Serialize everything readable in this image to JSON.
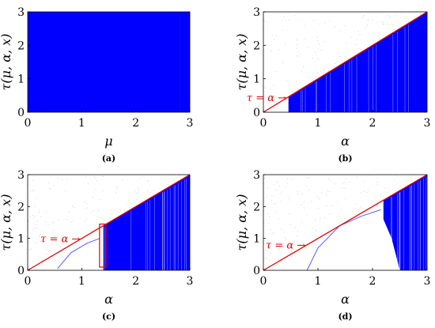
{
  "chart_data": [
    {
      "type": "scatter",
      "panel_label": "(a)",
      "xlabel": "μ",
      "ylabel": "τ(μ, α, x)",
      "xlim": [
        0,
        3
      ],
      "ylim": [
        0,
        3
      ],
      "x_ticks": [
        "0",
        "1",
        "2",
        "3"
      ],
      "y_ticks": [
        "0",
        "1",
        "2",
        "3"
      ],
      "colors": {
        "fill": "#0000ff"
      },
      "blue_region": {
        "x_start": 0,
        "x_end": 3,
        "y_top": 3
      },
      "diagonal": false,
      "annotation": null
    },
    {
      "type": "scatter",
      "panel_label": "(b)",
      "xlabel": "α",
      "ylabel": "τ(μ, α, x)",
      "xlim": [
        0,
        3
      ],
      "ylim": [
        0,
        3
      ],
      "x_ticks": [
        "0",
        "1",
        "2",
        "3"
      ],
      "y_ticks": [
        "0",
        "1",
        "2",
        "3"
      ],
      "colors": {
        "fill": "#0000ff",
        "diagonal": "#e00000",
        "noise": "#bbbbbb"
      },
      "blue_region": {
        "x_start": 0.46,
        "x_end": 3,
        "top": "diagonal"
      },
      "diagonal": true,
      "annotation": {
        "text": "τ = α →",
        "x": 0.45
      }
    },
    {
      "type": "scatter",
      "panel_label": "(c)",
      "xlabel": "α",
      "ylabel": "τ(μ, α, x)",
      "xlim": [
        0,
        3
      ],
      "ylim": [
        0,
        3
      ],
      "x_ticks": [
        "0",
        "1",
        "2",
        "3"
      ],
      "y_ticks": [
        "0",
        "1",
        "2",
        "3"
      ],
      "colors": {
        "fill": "#0000ff",
        "diagonal": "#e00000",
        "noise": "#bbbbbb",
        "box": "#e00000"
      },
      "blue_region": {
        "x_start": 1.4,
        "x_end": 3,
        "top": "diagonal"
      },
      "diagonal": true,
      "annotation": {
        "text": "τ = α →",
        "x": 1.0
      },
      "highlight_box": {
        "x0": 1.33,
        "x1": 1.45,
        "y0": 0.1,
        "y1": 1.45
      },
      "branch_curve": [
        [
          0.55,
          0.05
        ],
        [
          0.8,
          0.55
        ],
        [
          1.1,
          0.85
        ],
        [
          1.33,
          1.0
        ]
      ]
    },
    {
      "type": "scatter",
      "panel_label": "(d)",
      "xlabel": "α",
      "ylabel": "τ(μ, α, x)",
      "xlim": [
        0,
        3
      ],
      "ylim": [
        0,
        3
      ],
      "x_ticks": [
        "0",
        "1",
        "2",
        "3"
      ],
      "y_ticks": [
        "0",
        "1",
        "2",
        "3"
      ],
      "colors": {
        "fill": "#0000ff",
        "diagonal": "#e00000",
        "noise": "#bbbbbb"
      },
      "blue_region": {
        "x_start": 2.2,
        "x_end": 3,
        "top": "diagonal",
        "bottom_edge": [
          [
            2.2,
            1.6
          ],
          [
            2.35,
            1.0
          ],
          [
            2.5,
            0.0
          ]
        ]
      },
      "diagonal": true,
      "annotation": {
        "text": "τ = α →",
        "x": 0.8
      },
      "branch_curve": [
        [
          0.8,
          0.0
        ],
        [
          1.0,
          0.7
        ],
        [
          1.4,
          1.4
        ],
        [
          1.8,
          1.7
        ],
        [
          2.15,
          1.9
        ]
      ]
    }
  ]
}
